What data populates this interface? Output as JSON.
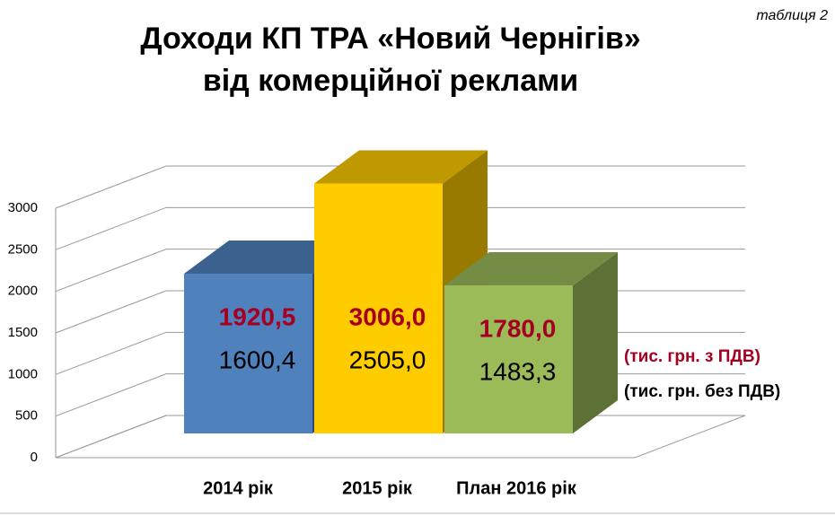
{
  "chart_data": {
    "type": "bar3d",
    "title": [
      "Доходи КП ТРА «Новий Чернігів»",
      "від комерційної реклами"
    ],
    "annotation": "таблиця 2",
    "categories": [
      "2014 рік",
      "2015 рік",
      "План 2016 рік"
    ],
    "series": [
      {
        "name": "(тис. грн. з ПДВ)",
        "color": "#a50021",
        "bar_colors": [
          "#4f81bd",
          "#ffcc00",
          "#9bbb59"
        ],
        "values": [
          1920.5,
          3006.0,
          1780.0
        ],
        "value_labels": [
          "1920,5",
          "3006,0",
          "1780,0"
        ]
      },
      {
        "name": "(тис. грн. без ПДВ)",
        "color": "#000000",
        "values": [
          1600.4,
          2505.0,
          1483.3
        ],
        "value_labels": [
          "1600,4",
          "2505,0",
          "1483,3"
        ]
      }
    ],
    "ylim": [
      0,
      3000
    ],
    "yticks": [
      0,
      500,
      1000,
      1500,
      2000,
      2500,
      3000
    ],
    "grid": true
  }
}
